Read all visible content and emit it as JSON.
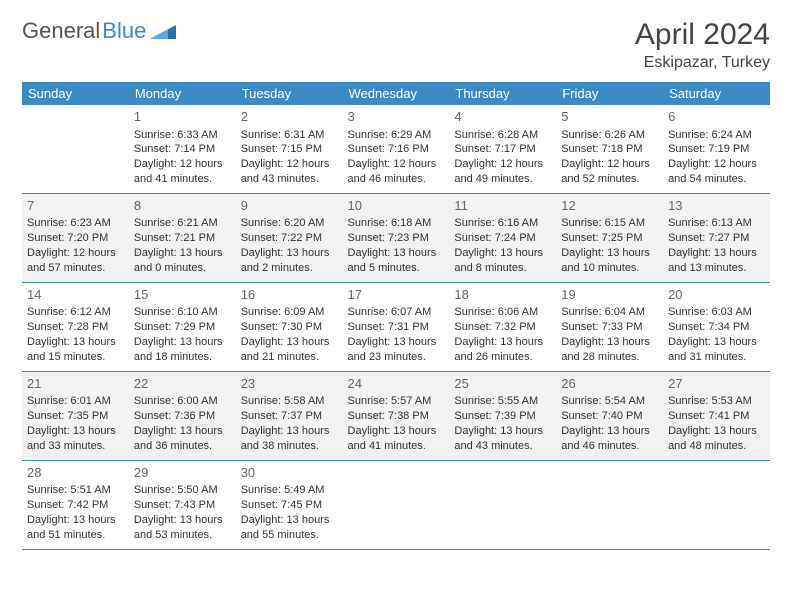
{
  "logo": {
    "text1": "General",
    "text2": "Blue"
  },
  "title": "April 2024",
  "location": "Eskipazar, Turkey",
  "colors": {
    "header_bg": "#3b8ac4",
    "header_text": "#ffffff",
    "alt_row_bg": "#f2f2f2",
    "text": "#333333",
    "border": "#3b8ac4"
  },
  "weekdays": [
    "Sunday",
    "Monday",
    "Tuesday",
    "Wednesday",
    "Thursday",
    "Friday",
    "Saturday"
  ],
  "weeks": [
    {
      "gray": false,
      "cells": [
        {
          "empty": true
        },
        {
          "day": "1",
          "sunrise": "Sunrise: 6:33 AM",
          "sunset": "Sunset: 7:14 PM",
          "daylight1": "Daylight: 12 hours",
          "daylight2": "and 41 minutes."
        },
        {
          "day": "2",
          "sunrise": "Sunrise: 6:31 AM",
          "sunset": "Sunset: 7:15 PM",
          "daylight1": "Daylight: 12 hours",
          "daylight2": "and 43 minutes."
        },
        {
          "day": "3",
          "sunrise": "Sunrise: 6:29 AM",
          "sunset": "Sunset: 7:16 PM",
          "daylight1": "Daylight: 12 hours",
          "daylight2": "and 46 minutes."
        },
        {
          "day": "4",
          "sunrise": "Sunrise: 6:28 AM",
          "sunset": "Sunset: 7:17 PM",
          "daylight1": "Daylight: 12 hours",
          "daylight2": "and 49 minutes."
        },
        {
          "day": "5",
          "sunrise": "Sunrise: 6:26 AM",
          "sunset": "Sunset: 7:18 PM",
          "daylight1": "Daylight: 12 hours",
          "daylight2": "and 52 minutes."
        },
        {
          "day": "6",
          "sunrise": "Sunrise: 6:24 AM",
          "sunset": "Sunset: 7:19 PM",
          "daylight1": "Daylight: 12 hours",
          "daylight2": "and 54 minutes."
        }
      ]
    },
    {
      "gray": true,
      "cells": [
        {
          "day": "7",
          "sunrise": "Sunrise: 6:23 AM",
          "sunset": "Sunset: 7:20 PM",
          "daylight1": "Daylight: 12 hours",
          "daylight2": "and 57 minutes."
        },
        {
          "day": "8",
          "sunrise": "Sunrise: 6:21 AM",
          "sunset": "Sunset: 7:21 PM",
          "daylight1": "Daylight: 13 hours",
          "daylight2": "and 0 minutes."
        },
        {
          "day": "9",
          "sunrise": "Sunrise: 6:20 AM",
          "sunset": "Sunset: 7:22 PM",
          "daylight1": "Daylight: 13 hours",
          "daylight2": "and 2 minutes."
        },
        {
          "day": "10",
          "sunrise": "Sunrise: 6:18 AM",
          "sunset": "Sunset: 7:23 PM",
          "daylight1": "Daylight: 13 hours",
          "daylight2": "and 5 minutes."
        },
        {
          "day": "11",
          "sunrise": "Sunrise: 6:16 AM",
          "sunset": "Sunset: 7:24 PM",
          "daylight1": "Daylight: 13 hours",
          "daylight2": "and 8 minutes."
        },
        {
          "day": "12",
          "sunrise": "Sunrise: 6:15 AM",
          "sunset": "Sunset: 7:25 PM",
          "daylight1": "Daylight: 13 hours",
          "daylight2": "and 10 minutes."
        },
        {
          "day": "13",
          "sunrise": "Sunrise: 6:13 AM",
          "sunset": "Sunset: 7:27 PM",
          "daylight1": "Daylight: 13 hours",
          "daylight2": "and 13 minutes."
        }
      ]
    },
    {
      "gray": false,
      "cells": [
        {
          "day": "14",
          "sunrise": "Sunrise: 6:12 AM",
          "sunset": "Sunset: 7:28 PM",
          "daylight1": "Daylight: 13 hours",
          "daylight2": "and 15 minutes."
        },
        {
          "day": "15",
          "sunrise": "Sunrise: 6:10 AM",
          "sunset": "Sunset: 7:29 PM",
          "daylight1": "Daylight: 13 hours",
          "daylight2": "and 18 minutes."
        },
        {
          "day": "16",
          "sunrise": "Sunrise: 6:09 AM",
          "sunset": "Sunset: 7:30 PM",
          "daylight1": "Daylight: 13 hours",
          "daylight2": "and 21 minutes."
        },
        {
          "day": "17",
          "sunrise": "Sunrise: 6:07 AM",
          "sunset": "Sunset: 7:31 PM",
          "daylight1": "Daylight: 13 hours",
          "daylight2": "and 23 minutes."
        },
        {
          "day": "18",
          "sunrise": "Sunrise: 6:06 AM",
          "sunset": "Sunset: 7:32 PM",
          "daylight1": "Daylight: 13 hours",
          "daylight2": "and 26 minutes."
        },
        {
          "day": "19",
          "sunrise": "Sunrise: 6:04 AM",
          "sunset": "Sunset: 7:33 PM",
          "daylight1": "Daylight: 13 hours",
          "daylight2": "and 28 minutes."
        },
        {
          "day": "20",
          "sunrise": "Sunrise: 6:03 AM",
          "sunset": "Sunset: 7:34 PM",
          "daylight1": "Daylight: 13 hours",
          "daylight2": "and 31 minutes."
        }
      ]
    },
    {
      "gray": true,
      "cells": [
        {
          "day": "21",
          "sunrise": "Sunrise: 6:01 AM",
          "sunset": "Sunset: 7:35 PM",
          "daylight1": "Daylight: 13 hours",
          "daylight2": "and 33 minutes."
        },
        {
          "day": "22",
          "sunrise": "Sunrise: 6:00 AM",
          "sunset": "Sunset: 7:36 PM",
          "daylight1": "Daylight: 13 hours",
          "daylight2": "and 36 minutes."
        },
        {
          "day": "23",
          "sunrise": "Sunrise: 5:58 AM",
          "sunset": "Sunset: 7:37 PM",
          "daylight1": "Daylight: 13 hours",
          "daylight2": "and 38 minutes."
        },
        {
          "day": "24",
          "sunrise": "Sunrise: 5:57 AM",
          "sunset": "Sunset: 7:38 PM",
          "daylight1": "Daylight: 13 hours",
          "daylight2": "and 41 minutes."
        },
        {
          "day": "25",
          "sunrise": "Sunrise: 5:55 AM",
          "sunset": "Sunset: 7:39 PM",
          "daylight1": "Daylight: 13 hours",
          "daylight2": "and 43 minutes."
        },
        {
          "day": "26",
          "sunrise": "Sunrise: 5:54 AM",
          "sunset": "Sunset: 7:40 PM",
          "daylight1": "Daylight: 13 hours",
          "daylight2": "and 46 minutes."
        },
        {
          "day": "27",
          "sunrise": "Sunrise: 5:53 AM",
          "sunset": "Sunset: 7:41 PM",
          "daylight1": "Daylight: 13 hours",
          "daylight2": "and 48 minutes."
        }
      ]
    },
    {
      "gray": false,
      "cells": [
        {
          "day": "28",
          "sunrise": "Sunrise: 5:51 AM",
          "sunset": "Sunset: 7:42 PM",
          "daylight1": "Daylight: 13 hours",
          "daylight2": "and 51 minutes."
        },
        {
          "day": "29",
          "sunrise": "Sunrise: 5:50 AM",
          "sunset": "Sunset: 7:43 PM",
          "daylight1": "Daylight: 13 hours",
          "daylight2": "and 53 minutes."
        },
        {
          "day": "30",
          "sunrise": "Sunrise: 5:49 AM",
          "sunset": "Sunset: 7:45 PM",
          "daylight1": "Daylight: 13 hours",
          "daylight2": "and 55 minutes."
        },
        {
          "empty": true,
          "emptyGray": true
        },
        {
          "empty": true,
          "emptyGray": true
        },
        {
          "empty": true,
          "emptyGray": true
        },
        {
          "empty": true,
          "emptyGray": true
        }
      ]
    }
  ]
}
